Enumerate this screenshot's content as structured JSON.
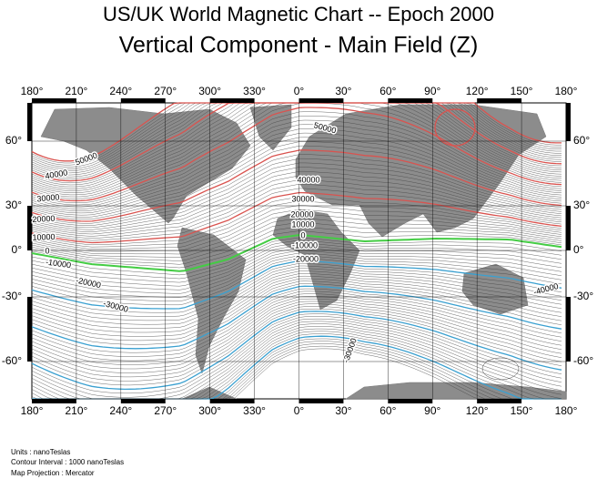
{
  "header": {
    "title": "US/UK World Magnetic Chart  --  Epoch 2000",
    "subtitle": "Vertical Component - Main Field (Z)"
  },
  "map": {
    "longitude_labels": [
      "180°",
      "210°",
      "240°",
      "270°",
      "300°",
      "330°",
      "0°",
      "30°",
      "60°",
      "90°",
      "120°",
      "150°",
      "180°"
    ],
    "latitude_labels": [
      "60°",
      "30°",
      "0°",
      "-30°",
      "-60°"
    ],
    "contour_labels": [
      "50000",
      "40000",
      "30000",
      "20000",
      "10000",
      "0",
      "-10000",
      "-20000",
      "-30000",
      "50000",
      "40000",
      "30000",
      "20000",
      "10000",
      "0",
      "-10000",
      "-20000",
      "-30000",
      "-40000"
    ]
  },
  "notes": [
    "Units : nanoTeslas",
    "Contour Interval : 1000 nanoTeslas",
    "Map Projection : Mercator"
  ]
}
